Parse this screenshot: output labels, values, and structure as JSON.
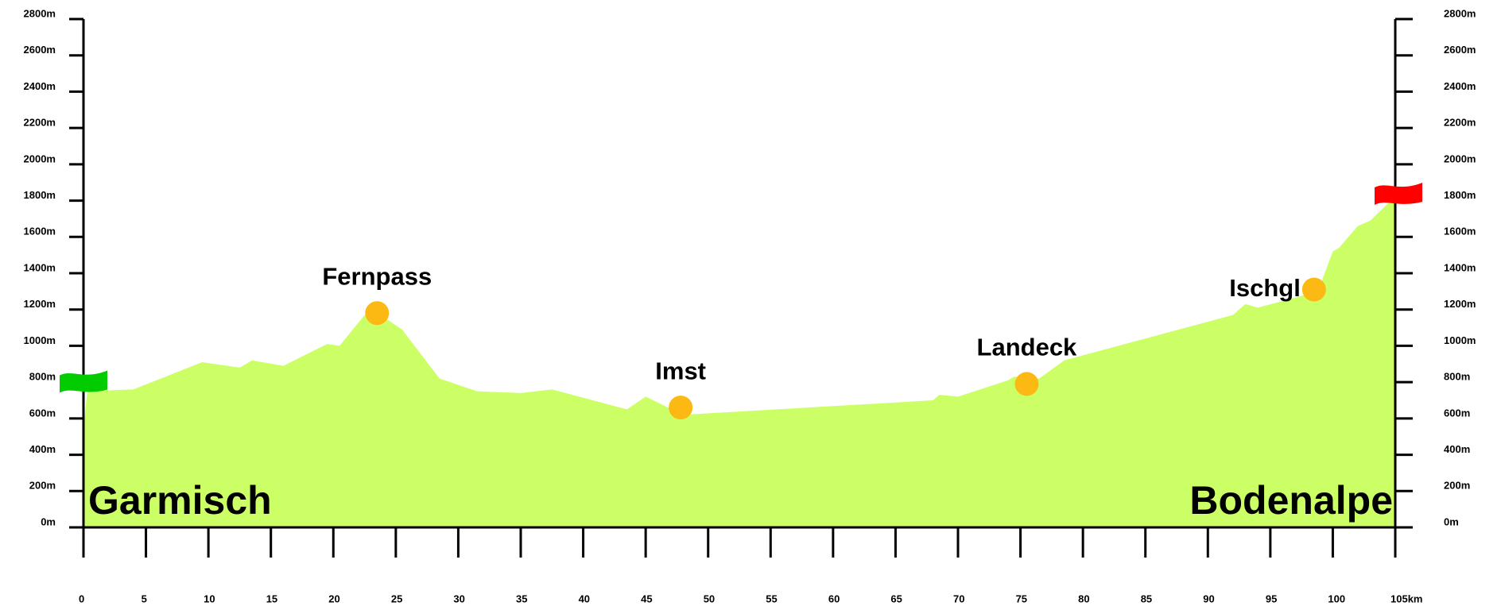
{
  "chart_data": {
    "type": "area",
    "x": [
      0,
      0.3,
      4,
      9.5,
      12.5,
      13.5,
      16,
      19.5,
      20.5,
      22.5,
      24,
      25.5,
      28.5,
      31.5,
      35,
      37.5,
      43.5,
      45,
      48,
      68,
      68.5,
      70,
      74,
      74.5,
      76.5,
      78.5,
      92,
      93,
      94,
      98.8,
      100,
      100.5,
      102,
      103,
      104.5,
      105
    ],
    "values": [
      530,
      750,
      760,
      910,
      880,
      920,
      890,
      1010,
      1000,
      1170,
      1160,
      1090,
      820,
      750,
      740,
      760,
      650,
      720,
      620,
      700,
      730,
      720,
      810,
      830,
      820,
      920,
      1170,
      1230,
      1210,
      1300,
      1520,
      1540,
      1660,
      1690,
      1790,
      1820
    ],
    "color": "#ccff66",
    "marker_color": "#fdb913",
    "start_flag_color": "#00cc00",
    "end_flag_color": "#ff0000",
    "xlim": [
      0,
      105
    ],
    "ylim": [
      0,
      2800
    ],
    "xticks": [
      0,
      5,
      10,
      15,
      20,
      25,
      30,
      35,
      40,
      45,
      50,
      55,
      60,
      65,
      70,
      75,
      80,
      85,
      90,
      95,
      100,
      {
        "value": 105,
        "label": "105km"
      }
    ],
    "yticks": [
      {
        "value": 0,
        "label": "0m"
      },
      {
        "value": 200,
        "label": "200m"
      },
      {
        "value": 400,
        "label": "400m"
      },
      {
        "value": 600,
        "label": "600m"
      },
      {
        "value": 800,
        "label": "800m"
      },
      {
        "value": 1000,
        "label": "1000m"
      },
      {
        "value": 1200,
        "label": "1200m"
      },
      {
        "value": 1400,
        "label": "1400m"
      },
      {
        "value": 1600,
        "label": "1600m"
      },
      {
        "value": 1800,
        "label": "1800m"
      },
      {
        "value": 2000,
        "label": "2000m"
      },
      {
        "value": 2200,
        "label": "2200m"
      },
      {
        "value": 2400,
        "label": "2400m"
      },
      {
        "value": 2600,
        "label": "2600m"
      },
      {
        "value": 2800,
        "label": "2800m"
      }
    ],
    "annotations": [
      {
        "label": "Fernpass",
        "x": 23.5,
        "y": 1180
      },
      {
        "label": "Imst",
        "x": 47.8,
        "y": 660
      },
      {
        "label": "Landeck",
        "x": 75.5,
        "y": 790
      },
      {
        "label": "Ischgl",
        "x": 98.5,
        "y": 1310
      }
    ],
    "start_label": "Garmisch",
    "end_label": "Bodenalpe"
  }
}
